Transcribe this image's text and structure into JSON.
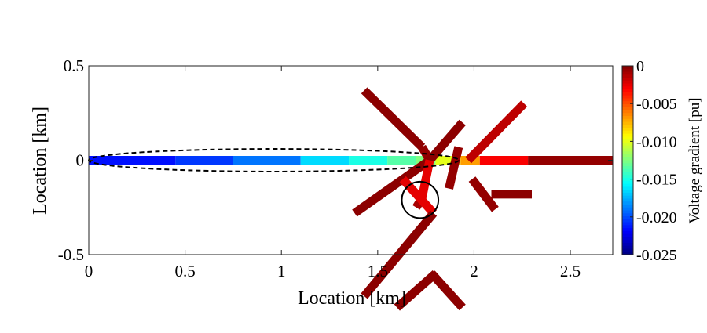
{
  "chart_data": {
    "type": "heatmap",
    "xlabel": "Location [km]",
    "ylabel": "Location [km]",
    "xlim": [
      0,
      2.72
    ],
    "ylim": [
      -0.5,
      0.5
    ],
    "x_ticks": [
      "0",
      "0.5",
      "1",
      "1.5",
      "2",
      "2.5"
    ],
    "y_ticks": [
      "-0.5",
      "0",
      "0.5"
    ],
    "colorbar": {
      "label": "Voltage gradient [pu]",
      "range": [
        -0.025,
        0
      ],
      "ticks": [
        "-0.025",
        "-0.020",
        "-0.015",
        "-0.010",
        "-0.005",
        "0"
      ],
      "colormap": "jet"
    },
    "segments": [
      {
        "x1": 0.0,
        "y1": 0.0,
        "x2": 0.45,
        "y2": 0.0,
        "value": -0.0215
      },
      {
        "x1": 0.45,
        "y1": 0.0,
        "x2": 0.75,
        "y2": 0.0,
        "value": -0.0205
      },
      {
        "x1": 0.75,
        "y1": 0.0,
        "x2": 1.1,
        "y2": 0.0,
        "value": -0.019
      },
      {
        "x1": 1.1,
        "y1": 0.0,
        "x2": 1.35,
        "y2": 0.0,
        "value": -0.0165
      },
      {
        "x1": 1.35,
        "y1": 0.0,
        "x2": 1.55,
        "y2": 0.0,
        "value": -0.015
      },
      {
        "x1": 1.55,
        "y1": 0.0,
        "x2": 1.7,
        "y2": 0.0,
        "value": -0.0135
      },
      {
        "x1": 1.7,
        "y1": 0.0,
        "x2": 1.8,
        "y2": 0.0,
        "value": -0.0125
      },
      {
        "x1": 1.8,
        "y1": 0.0,
        "x2": 1.93,
        "y2": 0.0,
        "value": -0.01
      },
      {
        "x1": 1.93,
        "y1": 0.0,
        "x2": 2.03,
        "y2": 0.0,
        "value": -0.007
      },
      {
        "x1": 2.03,
        "y1": 0.0,
        "x2": 2.28,
        "y2": 0.0,
        "value": -0.003
      },
      {
        "x1": 2.28,
        "y1": 0.0,
        "x2": 2.72,
        "y2": 0.0,
        "value": -0.0005
      },
      {
        "x1": 1.43,
        "y1": 0.37,
        "x2": 1.73,
        "y2": 0.07,
        "value": -0.0003
      },
      {
        "x1": 1.73,
        "y1": 0.07,
        "x2": 1.77,
        "y2": 0.0,
        "value": -0.0005
      },
      {
        "x1": 1.77,
        "y1": 0.0,
        "x2": 1.94,
        "y2": 0.2,
        "value": -0.0003
      },
      {
        "x1": 1.77,
        "y1": 0.0,
        "x2": 1.38,
        "y2": -0.28,
        "value": -0.0003
      },
      {
        "x1": 1.77,
        "y1": 0.0,
        "x2": 1.73,
        "y2": -0.2,
        "value": -0.0025
      },
      {
        "x1": 1.73,
        "y1": -0.2,
        "x2": 1.7,
        "y2": -0.25,
        "value": -0.001
      },
      {
        "x1": 1.63,
        "y1": -0.1,
        "x2": 1.79,
        "y2": -0.28,
        "value": -0.0025
      },
      {
        "x1": 1.79,
        "y1": -0.28,
        "x2": 1.43,
        "y2": -0.72,
        "value": -0.0003
      },
      {
        "x1": 1.6,
        "y1": -0.78,
        "x2": 1.8,
        "y2": -0.6,
        "value": -0.0003
      },
      {
        "x1": 1.78,
        "y1": -0.6,
        "x2": 1.94,
        "y2": -0.78,
        "value": -0.0003
      },
      {
        "x1": 1.97,
        "y1": 0.0,
        "x2": 2.26,
        "y2": 0.3,
        "value": -0.0015
      },
      {
        "x1": 1.92,
        "y1": 0.07,
        "x2": 1.87,
        "y2": -0.15,
        "value": -0.0005
      },
      {
        "x1": 1.99,
        "y1": -0.1,
        "x2": 2.11,
        "y2": -0.26,
        "value": -0.0005
      },
      {
        "x1": 2.09,
        "y1": -0.18,
        "x2": 2.3,
        "y2": -0.18,
        "value": -0.0003
      }
    ],
    "annotations": [
      {
        "type": "dashed-ellipse",
        "cx": 0.96,
        "cy": 0.0,
        "rx": 0.96,
        "ry": 0.06
      },
      {
        "type": "circle",
        "cx": 1.72,
        "cy": -0.21,
        "r": 0.095
      }
    ]
  }
}
